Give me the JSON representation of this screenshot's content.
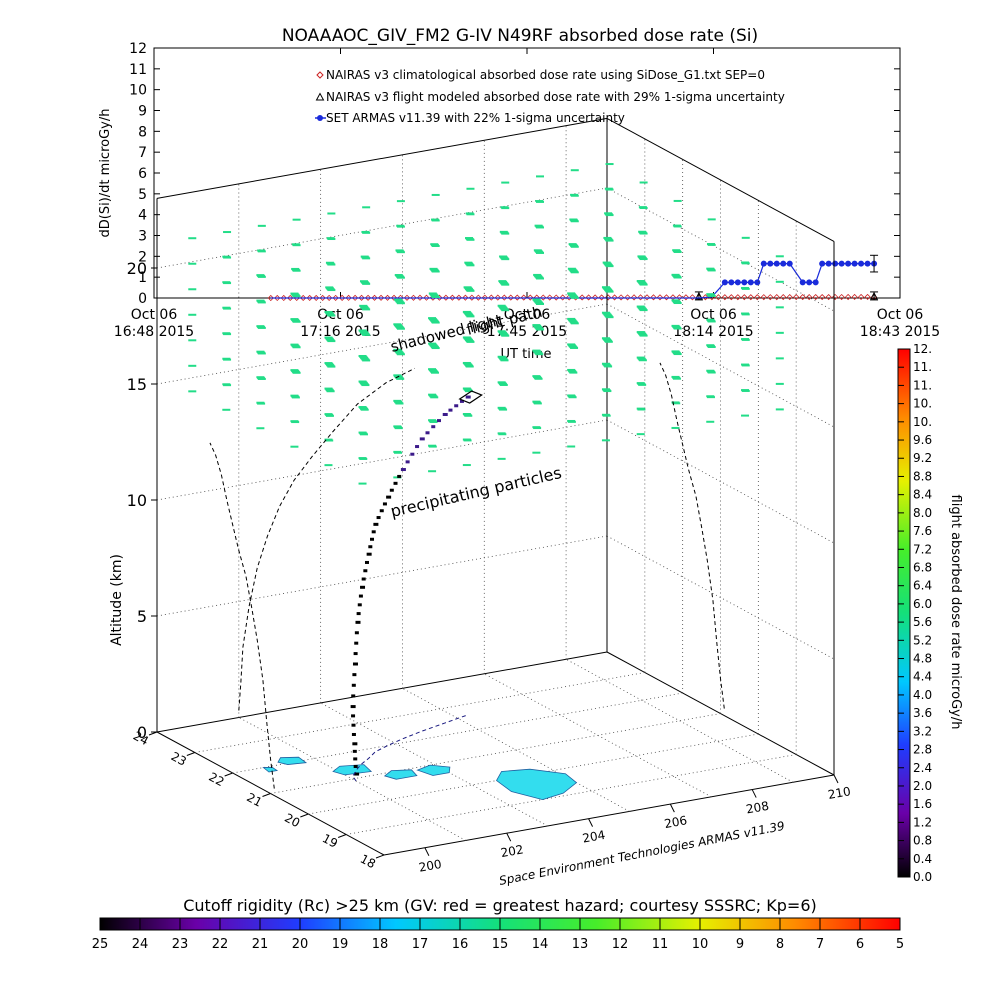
{
  "header": {
    "title": "NOAAAOC_GIV_FM2 G-IV    N49RF   absorbed dose rate (Si)"
  },
  "chart_data": [
    {
      "type": "line",
      "title": "NOAAAOC_GIV_FM2 G-IV    N49RF   absorbed dose rate (Si)",
      "xlabel": "UT time",
      "ylabel": "dD(Si)/dt microGy/h",
      "ylim": [
        0,
        12
      ],
      "yticks": [
        "0",
        "1",
        "2",
        "3",
        "4",
        "5",
        "6",
        "7",
        "8",
        "9",
        "10",
        "11",
        "12"
      ],
      "xticks": [
        {
          "l1": "Oct 06",
          "l2": "16:48 2015"
        },
        {
          "l1": "Oct 06",
          "l2": "17:16 2015"
        },
        {
          "l1": "Oct 06",
          "l2": "17:45 2015"
        },
        {
          "l1": "Oct 06",
          "l2": "18:14 2015"
        },
        {
          "l1": "Oct 06",
          "l2": "18:43 2015"
        }
      ],
      "legend_position": "top-left",
      "series": [
        {
          "name": "NAIRAS v3 climatological absorbed dose rate using SiDose_G1.txt SEP=0",
          "color": "#cc2222",
          "marker": "diamond",
          "t_start": "17:06",
          "t_end": "18:39",
          "y_start": 0.0,
          "y_end": 0.05
        },
        {
          "name": "NAIRAS v3 flight modeled absorbed dose rate with 29% 1-sigma uncertainty",
          "color": "#000000",
          "marker": "triangle",
          "points": [
            [
              "18:12",
              0.1
            ],
            [
              "18:39",
              0.1
            ]
          ]
        },
        {
          "name": "SET ARMAS v11.39 with 22% 1-sigma uncertainty",
          "color": "#1a2bdb",
          "marker": "dot",
          "points": [
            [
              "17:06",
              0.0
            ],
            [
              "17:12",
              0.0
            ],
            [
              "17:18",
              0.0
            ],
            [
              "17:24",
              0.0
            ],
            [
              "17:30",
              0.0
            ],
            [
              "17:36",
              0.0
            ],
            [
              "17:42",
              0.0
            ],
            [
              "17:48",
              0.0
            ],
            [
              "17:54",
              0.0
            ],
            [
              "18:00",
              0.0
            ],
            [
              "18:06",
              0.0
            ],
            [
              "18:10",
              0.0
            ],
            [
              "18:12",
              0.0
            ],
            [
              "18:14",
              0.05
            ],
            [
              "18:16",
              0.75
            ],
            [
              "18:17",
              0.75
            ],
            [
              "18:18",
              0.75
            ],
            [
              "18:19",
              0.75
            ],
            [
              "18:20",
              0.75
            ],
            [
              "18:21",
              0.75
            ],
            [
              "18:22",
              1.65
            ],
            [
              "18:23",
              1.65
            ],
            [
              "18:24",
              1.65
            ],
            [
              "18:25",
              1.65
            ],
            [
              "18:26",
              1.65
            ],
            [
              "18:28",
              0.75
            ],
            [
              "18:29",
              0.75
            ],
            [
              "18:30",
              0.75
            ],
            [
              "18:31",
              1.65
            ],
            [
              "18:32",
              1.65
            ],
            [
              "18:33",
              1.65
            ],
            [
              "18:34",
              1.65
            ],
            [
              "18:35",
              1.65
            ],
            [
              "18:36",
              1.65
            ],
            [
              "18:37",
              1.65
            ],
            [
              "18:38",
              1.65
            ],
            [
              "18:39",
              1.65
            ]
          ],
          "error_bar": {
            "x": "18:39",
            "low": 1.25,
            "high": 2.05
          }
        }
      ]
    },
    {
      "type": "scatter",
      "title": "",
      "xlabel": "",
      "ylabel": "Altitude (km)",
      "zticks": [
        "0",
        "5",
        "10",
        "15",
        "20"
      ],
      "lon_ticks": [
        "200",
        "202",
        "204",
        "206",
        "208",
        "210"
      ],
      "lat_ticks": [
        "18",
        "19",
        "20",
        "21",
        "22",
        "23",
        "24"
      ],
      "annotations": [
        "flight path",
        "shadowed light",
        "precipitating particles"
      ],
      "credit": "Space Environment Technologies ARMAS v11.39",
      "track_lon": [
        201.0,
        201.05,
        201.1,
        201.25,
        201.45,
        201.7,
        202.0,
        202.35,
        202.8,
        203.3,
        203.9,
        204.6,
        205.3
      ],
      "track_lat": [
        20.9,
        21.0,
        21.1,
        21.2,
        21.35,
        21.5,
        21.65,
        21.85,
        22.0,
        22.15,
        22.3,
        22.45,
        22.6
      ],
      "track_alt": [
        0.3,
        1.5,
        3.0,
        4.7,
        6.3,
        7.6,
        8.8,
        9.8,
        10.7,
        11.6,
        12.6,
        13.3,
        13.7
      ]
    }
  ],
  "colorbar_right": {
    "label": "flight absorbed dose rate microGy/h",
    "ticks": [
      "0.0",
      "0.4",
      "0.8",
      "1.2",
      "1.6",
      "2.0",
      "2.4",
      "2.8",
      "3.2",
      "3.6",
      "4.0",
      "4.4",
      "4.8",
      "5.2",
      "5.6",
      "6.0",
      "6.4",
      "6.8",
      "7.2",
      "7.6",
      "8.0",
      "8.4",
      "8.8",
      "9.2",
      "9.6",
      "10.",
      "10.",
      "11.",
      "11.",
      "12."
    ]
  },
  "colorbar_bottom": {
    "label": "Cutoff rigidity (Rc) >25 km (GV: red = greatest hazard; courtesy SSSRC; Kp=6)",
    "ticks": [
      "25",
      "24",
      "23",
      "22",
      "21",
      "20",
      "19",
      "18",
      "17",
      "16",
      "15",
      "14",
      "13",
      "12",
      "11",
      "10",
      "9",
      "8",
      "7",
      "6",
      "5"
    ]
  },
  "colors": {
    "armas": "#1a2bdb",
    "nairas_clim": "#cc2222",
    "precip": "#22dd88",
    "land": "#33ddee"
  }
}
